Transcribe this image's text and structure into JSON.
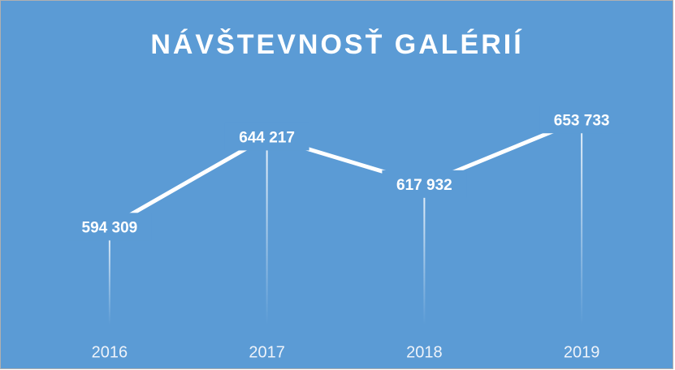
{
  "chart_data": {
    "type": "line",
    "title": "NÁVŠTEVNOSŤ GALÉRIÍ",
    "categories": [
      "2016",
      "2017",
      "2018",
      "2019"
    ],
    "values": [
      594309,
      644217,
      617932,
      653733
    ],
    "value_labels": [
      "594 309",
      "644 217",
      "617 932",
      "653 733"
    ],
    "color": "#ffffff",
    "background": "#5b9bd5",
    "drop_lines": true,
    "ylim": [
      540000,
      675000
    ]
  }
}
